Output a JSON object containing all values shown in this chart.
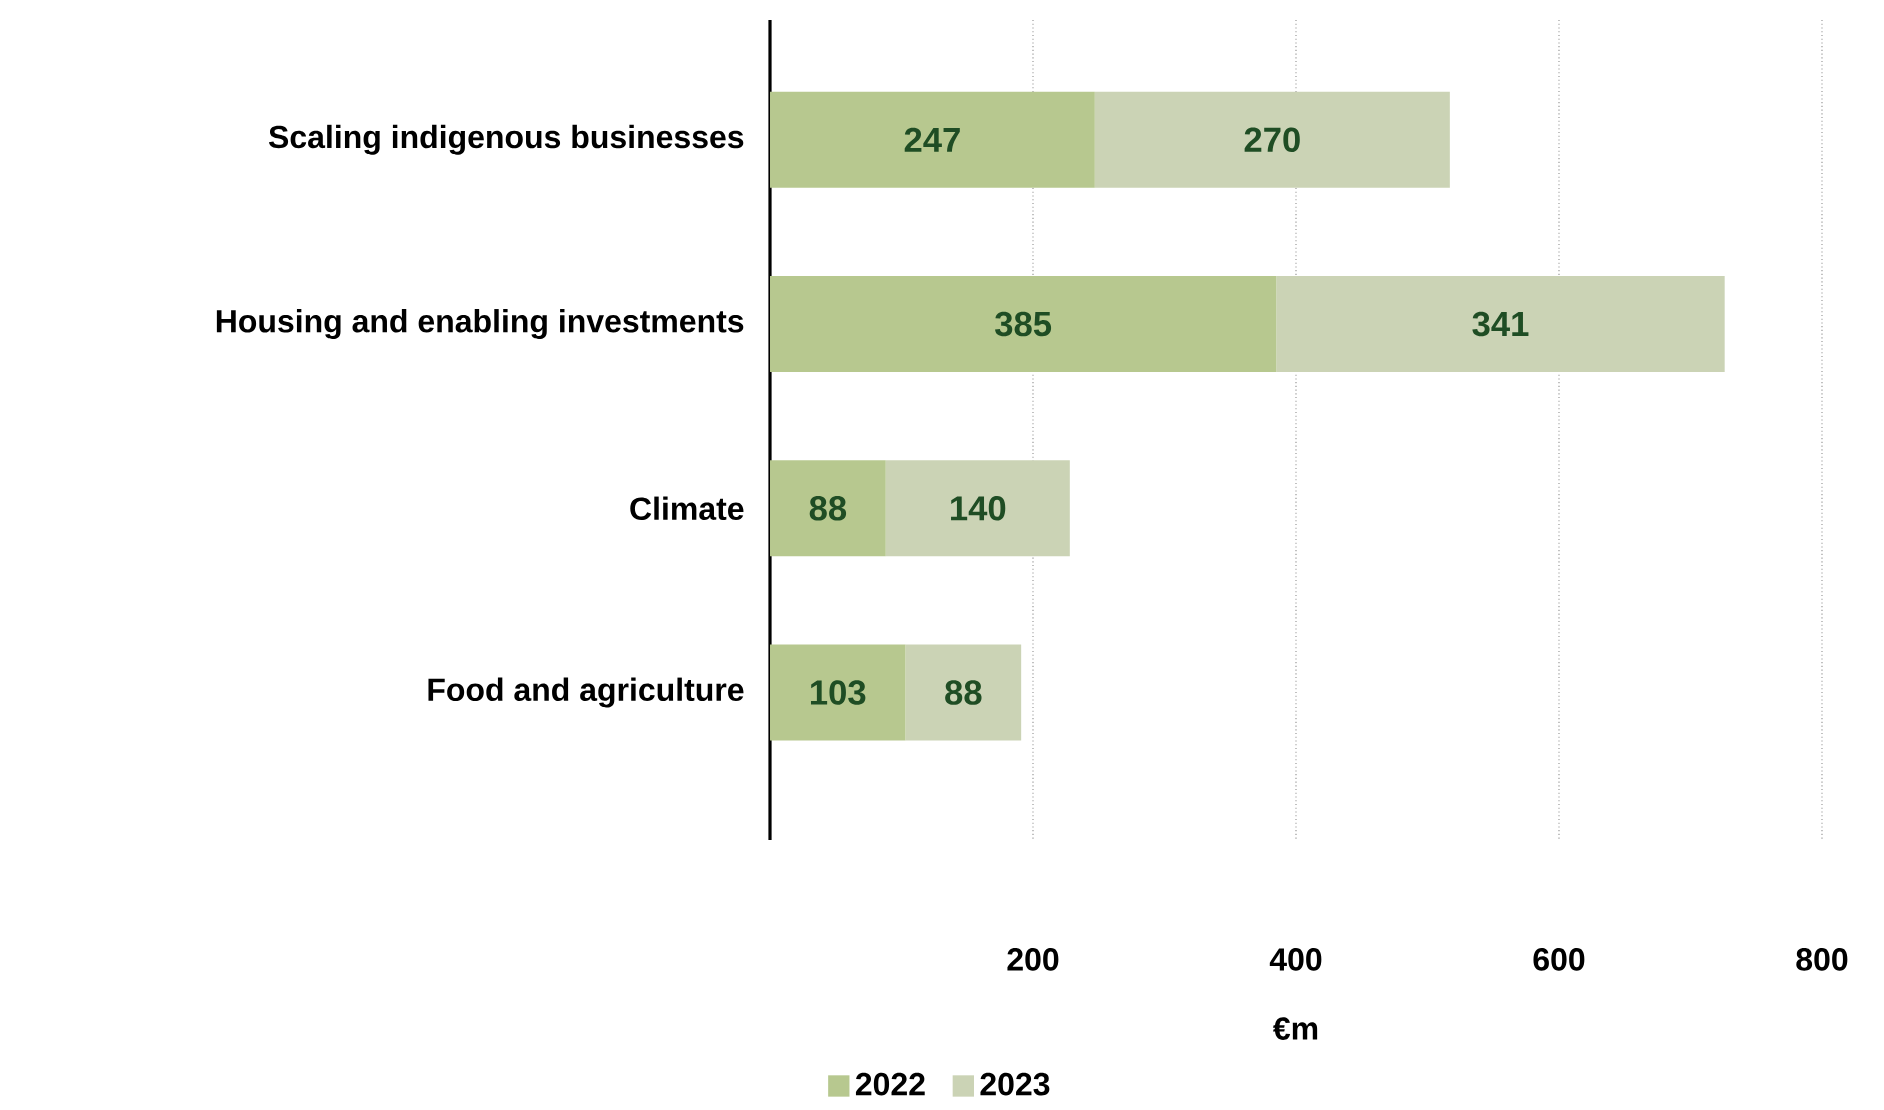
{
  "chart_data": {
    "type": "bar",
    "orientation": "horizontal",
    "stacked": true,
    "xlabel": "€m",
    "categories": [
      "Scaling indigenous businesses",
      "Housing and enabling investments",
      "Climate",
      "Food and agriculture"
    ],
    "series": [
      {
        "name": "2022",
        "color": "#b7c88f",
        "values": [
          247,
          385,
          88,
          103
        ]
      },
      {
        "name": "2023",
        "color": "#cbd3b5",
        "values": [
          270,
          341,
          140,
          88
        ]
      }
    ],
    "xlim": [
      0,
      800
    ],
    "xticks": [
      200,
      400,
      600,
      800
    ],
    "grid": "x",
    "legend": "bottom",
    "data_labels": true
  }
}
